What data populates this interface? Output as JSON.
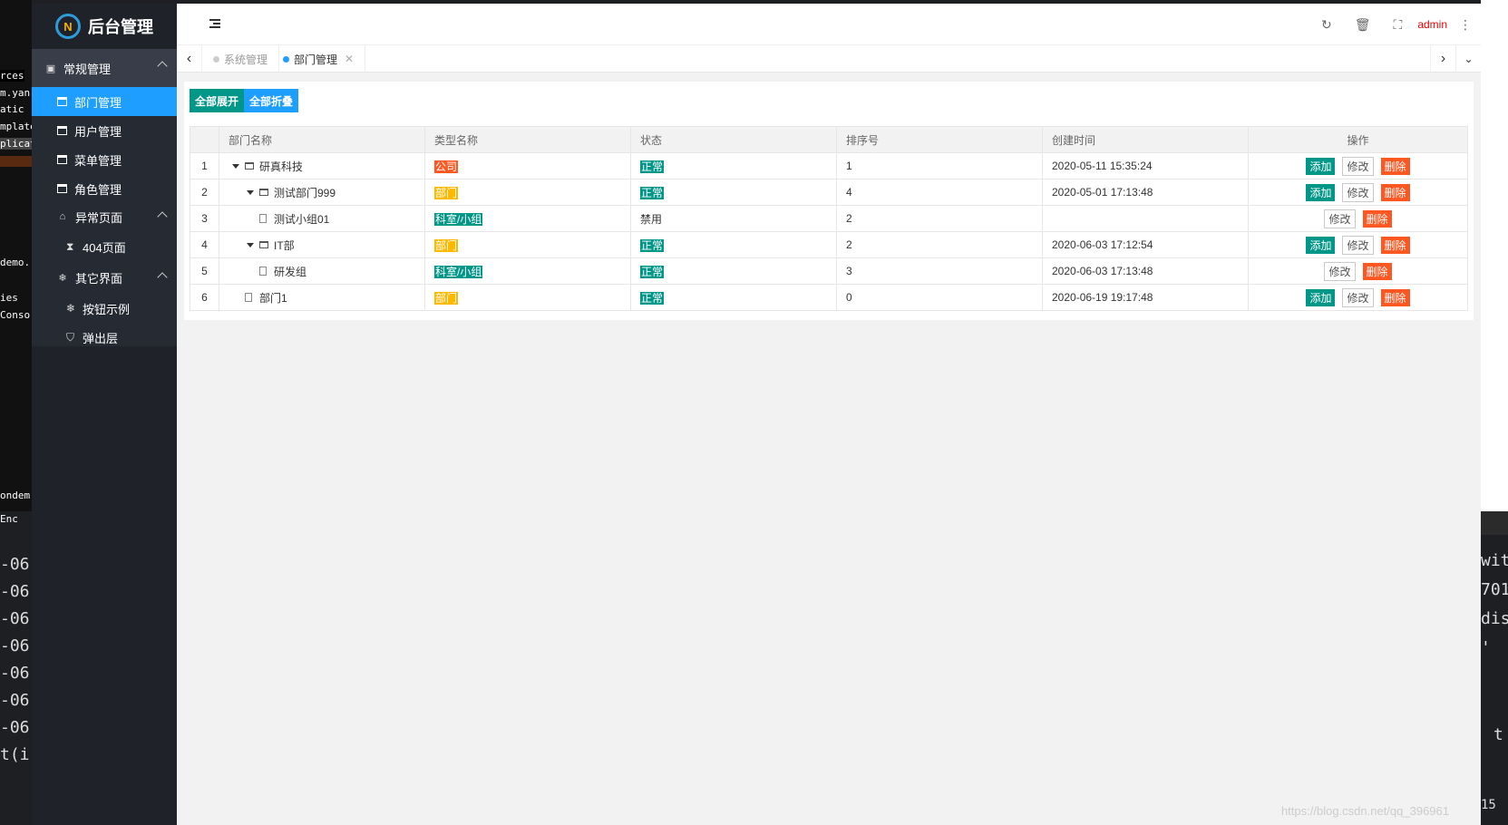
{
  "background": {
    "left_lines": [
      "rces",
      "m.yan",
      "atic",
      "mplate",
      "plicati",
      "demo.",
      "ies",
      "Conso",
      "ondem",
      "Enc",
      "-06",
      "-06",
      "-06",
      "-06",
      "-06",
      "-06",
      "-06",
      "t(i"
    ],
    "right_lines": [
      "wit",
      "701",
      "dis",
      "'",
      "t",
      "15"
    ]
  },
  "sidebar": {
    "logo_text": "后台管理",
    "logo_mark": "N",
    "groups": [
      {
        "label": "常规管理",
        "icon": "user-card-icon",
        "items": [
          "部门管理",
          "用户管理",
          "菜单管理",
          "角色管理"
        ]
      },
      {
        "label": "异常页面",
        "icon": "home-icon",
        "items": [
          "404页面"
        ]
      },
      {
        "label": "其它界面",
        "icon": "snowflake-icon",
        "items": [
          "按钮示例",
          "弹出层"
        ]
      }
    ]
  },
  "header": {
    "admin_label": "admin"
  },
  "tabs": [
    {
      "label": "系统管理",
      "active": false
    },
    {
      "label": "部门管理",
      "active": true
    }
  ],
  "toolbar": {
    "expand_all": "全部展开",
    "collapse_all": "全部折叠"
  },
  "table": {
    "headers": [
      "",
      "部门名称",
      "类型名称",
      "状态",
      "排序号",
      "创建时间",
      "操作"
    ],
    "rows": [
      {
        "no": "1",
        "name": "研真科技",
        "type": "公司",
        "type_color": "red",
        "status": "正常",
        "status_tag": true,
        "order": "1",
        "created": "2020-05-11 15:35:24",
        "add": "添加",
        "edit": "修改",
        "del": "删除"
      },
      {
        "no": "2",
        "name": "测试部门999",
        "type": "部门",
        "type_color": "yellow",
        "status": "正常",
        "status_tag": true,
        "order": "4",
        "created": "2020-05-01 17:13:48",
        "add": "添加",
        "edit": "修改",
        "del": "删除"
      },
      {
        "no": "3",
        "name": "测试小组01",
        "type": "科室/小组",
        "type_color": "teal",
        "status": "禁用",
        "status_tag": false,
        "order": "2",
        "created": "",
        "add": null,
        "edit": "修改",
        "del": "删除"
      },
      {
        "no": "4",
        "name": "IT部",
        "type": "部门",
        "type_color": "yellow",
        "status": "正常",
        "status_tag": true,
        "order": "2",
        "created": "2020-06-03 17:12:54",
        "add": "添加",
        "edit": "修改",
        "del": "删除"
      },
      {
        "no": "5",
        "name": "研发组",
        "type": "科室/小组",
        "type_color": "teal",
        "status": "正常",
        "status_tag": true,
        "order": "3",
        "created": "2020-06-03 17:13:48",
        "add": null,
        "edit": "修改",
        "del": "删除"
      },
      {
        "no": "6",
        "name": "部门1",
        "type": "部门",
        "type_color": "yellow",
        "status": "正常",
        "status_tag": true,
        "order": "0",
        "created": "2020-06-19 19:17:48",
        "add": "添加",
        "edit": "修改",
        "del": "删除"
      }
    ]
  },
  "watermark": "https://blog.csdn.net/qq_396961"
}
